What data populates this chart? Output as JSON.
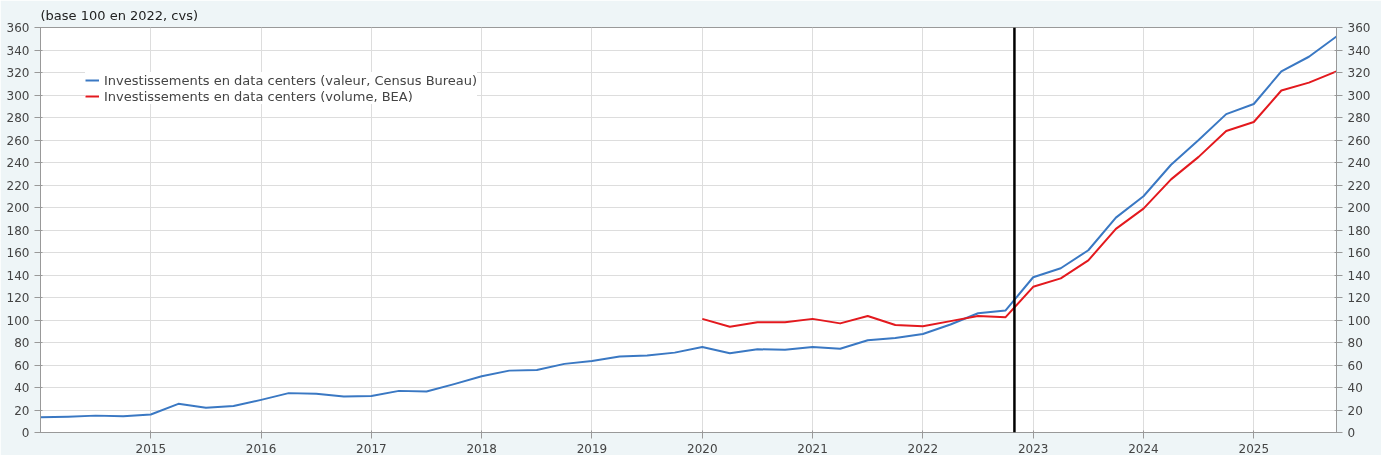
{
  "chart_data": {
    "type": "line",
    "title": "(base 100 en 2022, cvs)",
    "x": [
      2014.0,
      2014.25,
      2014.5,
      2014.75,
      2015.0,
      2015.25,
      2015.5,
      2015.75,
      2016.0,
      2016.25,
      2016.5,
      2016.75,
      2017.0,
      2017.25,
      2017.5,
      2017.75,
      2018.0,
      2018.25,
      2018.5,
      2018.75,
      2019.0,
      2019.25,
      2019.5,
      2019.75,
      2020.0,
      2020.25,
      2020.5,
      2020.75,
      2021.0,
      2021.25,
      2021.5,
      2021.75,
      2022.0,
      2022.25,
      2022.5,
      2022.75,
      2023.0,
      2023.25,
      2023.5,
      2023.75,
      2024.0,
      2024.25,
      2024.5,
      2024.75,
      2025.0,
      2025.25,
      2025.5,
      2025.75
    ],
    "series": [
      {
        "name": "Investissements en data centers (valeur, Census Bureau)",
        "color": "#3a78c3",
        "values": [
          13.5,
          14,
          15,
          14.5,
          16,
          25.5,
          22,
          23.5,
          29,
          35,
          34.5,
          32,
          32.5,
          37,
          36.5,
          43,
          50,
          55,
          55.5,
          61,
          63.5,
          67.5,
          68.5,
          71,
          76,
          70.5,
          74,
          73.5,
          76,
          74.5,
          82,
          84,
          87.5,
          96,
          106,
          108.5,
          138,
          146,
          162,
          191,
          210,
          238,
          260,
          283,
          292,
          321,
          334,
          352
        ]
      },
      {
        "name": "Investissements en data centers (volume, BEA)",
        "color": "#e3191e",
        "values": [
          null,
          null,
          null,
          null,
          null,
          null,
          null,
          null,
          null,
          null,
          null,
          null,
          null,
          null,
          null,
          null,
          null,
          null,
          null,
          null,
          null,
          null,
          null,
          null,
          101,
          94,
          98,
          98,
          101,
          97,
          103.5,
          95.5,
          94.5,
          99,
          103.5,
          102.5,
          129.5,
          137,
          153,
          181,
          199,
          225,
          245,
          268,
          276,
          304,
          311,
          321
        ]
      }
    ],
    "xlim": [
      2014,
      2025.75
    ],
    "xticks": [
      2015,
      2016,
      2017,
      2018,
      2019,
      2020,
      2021,
      2022,
      2023,
      2024,
      2025
    ],
    "ylim": [
      0,
      360
    ],
    "yticks": [
      0,
      20,
      40,
      60,
      80,
      100,
      120,
      140,
      160,
      180,
      200,
      220,
      240,
      260,
      280,
      300,
      320,
      340,
      360
    ],
    "y2lim": [
      0,
      360
    ],
    "y2ticks": [
      0,
      20,
      40,
      60,
      80,
      100,
      120,
      140,
      160,
      180,
      200,
      220,
      240,
      260,
      280,
      300,
      320,
      340,
      360
    ],
    "ref_lines": [
      {
        "axis": "x",
        "value": 2022.83,
        "color": "#000000"
      }
    ],
    "grid": true,
    "legend": "top left"
  }
}
